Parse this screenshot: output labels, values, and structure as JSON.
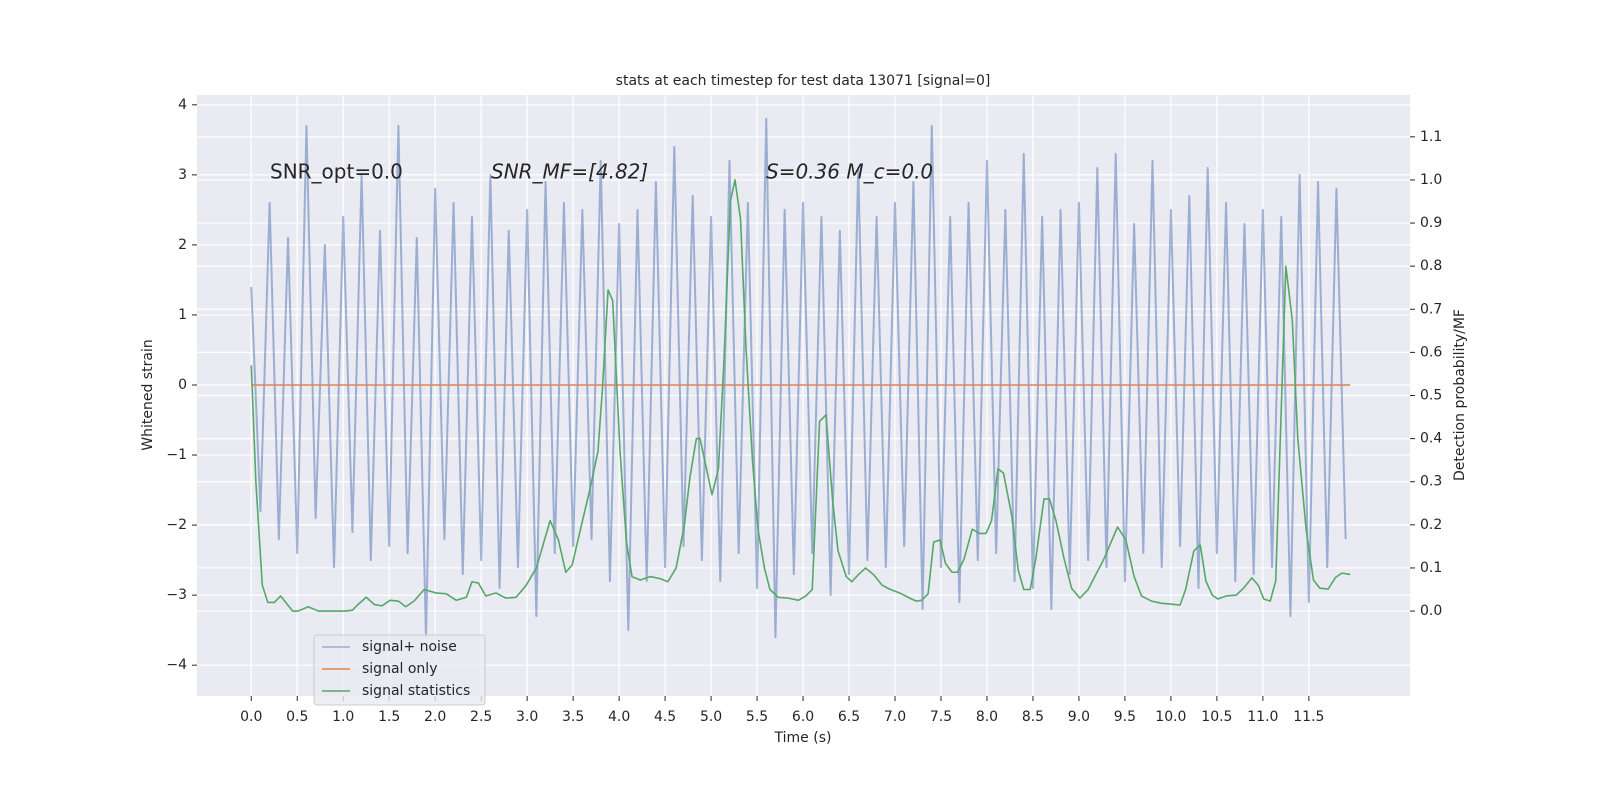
{
  "chart_data": {
    "type": "line",
    "title": "stats at each timestep for test data 13071 [signal=0]",
    "xlabel": "Time (s)",
    "ylabel": "Whitened strain",
    "y2label": "Detection probability/MF",
    "annotations": [
      "SNR_opt=0.0",
      "SNR_MF=[4.82]",
      "S=0.36   M_c=0.0"
    ],
    "xlim": [
      -0.59,
      12.6
    ],
    "ylim": [
      -4.44,
      4.14
    ],
    "y2lim": [
      -0.197,
      1.197
    ],
    "xticks": [
      {
        "value": 0,
        "label": "0.0"
      },
      0.5,
      {
        "value": 1,
        "label": "1.0"
      },
      1.5,
      {
        "value": 2,
        "label": "2.0"
      },
      2.5,
      {
        "value": 3,
        "label": "3.0"
      },
      3.5,
      {
        "value": 4,
        "label": "4.0"
      },
      4.5,
      {
        "value": 5,
        "label": "5.0"
      },
      5.5,
      {
        "value": 6,
        "label": "6.0"
      },
      6.5,
      {
        "value": 7,
        "label": "7.0"
      },
      7.5,
      {
        "value": 8,
        "label": "8.0"
      },
      8.5,
      {
        "value": 9,
        "label": "9.0"
      },
      9.5,
      {
        "value": 10,
        "label": "10.0"
      },
      10.5,
      {
        "value": 11,
        "label": "11.0"
      },
      11.5
    ],
    "yticks": [
      {
        "value": -4,
        "label": "−4"
      },
      {
        "value": -3,
        "label": "−3"
      },
      {
        "value": -2,
        "label": "−2"
      },
      {
        "value": -1,
        "label": "−1"
      },
      0,
      1,
      2,
      3,
      4
    ],
    "y2ticks": [
      {
        "value": 0,
        "label": "0.0"
      },
      0.1,
      0.2,
      0.3,
      0.4,
      0.5,
      0.6,
      0.7,
      0.8,
      0.9,
      {
        "value": 1,
        "label": "1.0"
      },
      1.1
    ],
    "grid": true,
    "legend": "lower left",
    "series": [
      {
        "name": "signal+ noise",
        "color": "#4c72b0",
        "alpha": 0.5,
        "x": [
          0,
          0.1,
          0.2,
          0.3,
          0.4,
          0.5,
          0.6,
          0.7,
          0.8,
          0.9,
          1,
          1.1,
          1.2,
          1.3,
          1.4,
          1.5,
          1.6,
          1.7,
          1.8,
          1.9,
          2,
          2.1,
          2.2,
          2.3,
          2.4,
          2.5,
          2.6,
          2.7,
          2.8,
          2.9,
          3,
          3.1,
          3.2,
          3.3,
          3.4,
          3.5,
          3.6,
          3.7,
          3.8,
          3.9,
          4,
          4.1,
          4.2,
          4.3,
          4.4,
          4.5,
          4.6,
          4.7,
          4.8,
          4.9,
          5,
          5.1,
          5.2,
          5.3,
          5.4,
          5.5,
          5.6,
          5.7,
          5.8,
          5.9,
          6,
          6.1,
          6.2,
          6.3,
          6.4,
          6.5,
          6.6,
          6.7,
          6.8,
          6.9,
          7,
          7.1,
          7.2,
          7.3,
          7.4,
          7.5,
          7.6,
          7.7,
          7.8,
          7.9,
          8,
          8.1,
          8.2,
          8.3,
          8.4,
          8.5,
          8.6,
          8.7,
          8.8,
          8.9,
          9,
          9.1,
          9.2,
          9.3,
          9.4,
          9.5,
          9.6,
          9.7,
          9.8,
          9.9,
          10,
          10.1,
          10.2,
          10.3,
          10.4,
          10.5,
          10.6,
          10.7,
          10.8,
          10.9,
          11,
          11.1,
          11.2,
          11.3,
          11.4,
          11.5,
          11.6,
          11.7,
          11.8,
          11.9
        ],
        "values": [
          1.4,
          -1.8,
          2.6,
          -2.2,
          2.1,
          -2.4,
          3.7,
          -1.9,
          2.0,
          -2.6,
          2.4,
          -2.1,
          3.0,
          -2.5,
          2.2,
          -2.3,
          3.7,
          -2.4,
          2.1,
          -3.6,
          2.8,
          -2.2,
          2.6,
          -2.7,
          2.4,
          -2.5,
          3.0,
          -2.9,
          2.2,
          -2.6,
          2.5,
          -3.3,
          2.9,
          -2.4,
          2.6,
          -2.3,
          2.5,
          -2.2,
          3.2,
          -2.8,
          2.3,
          -3.5,
          2.5,
          -2.8,
          2.9,
          -2.6,
          3.4,
          -2.3,
          2.7,
          -2.5,
          2.4,
          -2.8,
          3.2,
          -2.4,
          2.6,
          -2.9,
          3.8,
          -3.6,
          2.5,
          -2.7,
          2.6,
          -2.4,
          2.4,
          -3.0,
          2.2,
          -2.7,
          3.1,
          -2.5,
          2.4,
          -2.6,
          2.6,
          -2.3,
          2.9,
          -3.2,
          3.7,
          -2.6,
          2.4,
          -3.1,
          2.6,
          -2.5,
          3.2,
          -2.4,
          2.5,
          -2.8,
          3.3,
          -2.9,
          2.4,
          -3.2,
          2.5,
          -2.7,
          2.6,
          -2.5,
          3.1,
          -2.6,
          3.3,
          -2.8,
          2.3,
          -2.4,
          3.2,
          -2.6,
          2.5,
          -2.3,
          2.7,
          -2.9,
          3.1,
          -2.4,
          2.6,
          -2.8,
          2.3,
          -2.7,
          2.5,
          -2.6,
          2.4,
          -3.3,
          3.0,
          -3.1,
          2.9,
          -2.6,
          2.8,
          -2.2
        ]
      },
      {
        "name": "signal only",
        "color": "#dd8452",
        "x": [
          0,
          11.95
        ],
        "values": [
          0,
          0
        ]
      },
      {
        "name": "signal statistics",
        "color": "#55a868",
        "axis": "y2",
        "x": [
          0,
          0.05,
          0.12,
          0.18,
          0.25,
          0.32,
          0.45,
          0.51,
          0.62,
          0.73,
          1.02,
          1.1,
          1.16,
          1.25,
          1.34,
          1.42,
          1.51,
          1.6,
          1.68,
          1.77,
          1.88,
          2.01,
          2.12,
          2.23,
          2.34,
          2.4,
          2.47,
          2.55,
          2.66,
          2.77,
          2.88,
          2.99,
          3.1,
          3.25,
          3.34,
          3.42,
          3.49,
          3.58,
          3.68,
          3.77,
          3.82,
          3.88,
          3.93,
          4.01,
          4.08,
          4.14,
          4.23,
          4.34,
          4.45,
          4.53,
          4.62,
          4.71,
          4.77,
          4.84,
          4.88,
          4.95,
          5.01,
          5.08,
          5.14,
          5.21,
          5.26,
          5.32,
          5.38,
          5.45,
          5.51,
          5.58,
          5.64,
          5.73,
          5.84,
          5.95,
          6.03,
          6.1,
          6.18,
          6.25,
          6.32,
          6.38,
          6.47,
          6.53,
          6.6,
          6.68,
          6.77,
          6.86,
          6.95,
          7.05,
          7.16,
          7.23,
          7.29,
          7.36,
          7.42,
          7.49,
          7.55,
          7.62,
          7.68,
          7.75,
          7.84,
          7.92,
          7.99,
          8.05,
          8.12,
          8.18,
          8.27,
          8.34,
          8.4,
          8.47,
          8.53,
          8.62,
          8.68,
          8.75,
          8.84,
          8.92,
          9.01,
          9.1,
          9.18,
          9.27,
          9.42,
          9.51,
          9.6,
          9.68,
          9.79,
          9.9,
          10.01,
          10.1,
          10.16,
          10.25,
          10.32,
          10.38,
          10.45,
          10.51,
          10.6,
          10.71,
          10.79,
          10.88,
          10.95,
          11.01,
          11.08,
          11.14,
          11.25,
          11.32,
          11.38,
          11.47,
          11.55,
          11.62,
          11.71,
          11.79,
          11.86,
          11.95
        ],
        "values": [
          0.57,
          0.3,
          0.06,
          0.02,
          0.02,
          0.035,
          0.0,
          0.0,
          0.01,
          0.0,
          0.0,
          0.002,
          0.015,
          0.032,
          0.015,
          0.012,
          0.025,
          0.023,
          0.01,
          0.023,
          0.05,
          0.042,
          0.04,
          0.025,
          0.032,
          0.068,
          0.065,
          0.035,
          0.042,
          0.03,
          0.032,
          0.06,
          0.1,
          0.21,
          0.165,
          0.09,
          0.107,
          0.19,
          0.28,
          0.37,
          0.52,
          0.745,
          0.72,
          0.37,
          0.16,
          0.08,
          0.072,
          0.08,
          0.075,
          0.068,
          0.1,
          0.2,
          0.31,
          0.4,
          0.4,
          0.33,
          0.27,
          0.33,
          0.58,
          0.95,
          1.0,
          0.91,
          0.61,
          0.35,
          0.19,
          0.1,
          0.05,
          0.032,
          0.03,
          0.025,
          0.035,
          0.05,
          0.44,
          0.455,
          0.26,
          0.14,
          0.08,
          0.068,
          0.084,
          0.1,
          0.084,
          0.06,
          0.05,
          0.042,
          0.03,
          0.023,
          0.025,
          0.04,
          0.16,
          0.165,
          0.11,
          0.09,
          0.09,
          0.12,
          0.19,
          0.18,
          0.18,
          0.21,
          0.33,
          0.32,
          0.22,
          0.095,
          0.05,
          0.05,
          0.12,
          0.26,
          0.26,
          0.21,
          0.12,
          0.053,
          0.03,
          0.05,
          0.083,
          0.12,
          0.195,
          0.165,
          0.08,
          0.035,
          0.023,
          0.018,
          0.016,
          0.014,
          0.05,
          0.14,
          0.153,
          0.07,
          0.037,
          0.028,
          0.035,
          0.037,
          0.053,
          0.077,
          0.06,
          0.028,
          0.023,
          0.07,
          0.8,
          0.675,
          0.4,
          0.19,
          0.072,
          0.053,
          0.051,
          0.078,
          0.088,
          0.085
        ]
      }
    ]
  }
}
